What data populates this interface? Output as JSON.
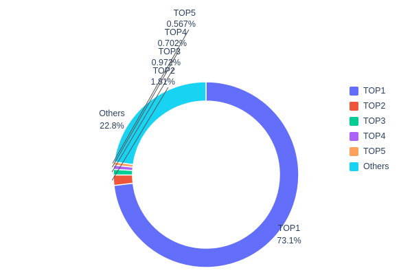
{
  "chart_data": {
    "type": "pie",
    "title": "",
    "labels": [
      "TOP1",
      "TOP2",
      "TOP3",
      "TOP4",
      "TOP5",
      "Others"
    ],
    "values": [
      73.1,
      1.81,
      0.972,
      0.702,
      0.567,
      22.8
    ],
    "display_percents": [
      "73.1%",
      "1.81%",
      "0.972%",
      "0.702%",
      "0.567%",
      "22.8%"
    ],
    "colors": [
      "#636efa",
      "#ef553b",
      "#00cc96",
      "#ab63fa",
      "#ffa15a",
      "#19d3f3"
    ],
    "hole": 0.79,
    "direction": "clockwise",
    "start_angle": "top",
    "legend_position": "right",
    "background_color": "#ffffff",
    "text_color": "#2a3f5f"
  }
}
